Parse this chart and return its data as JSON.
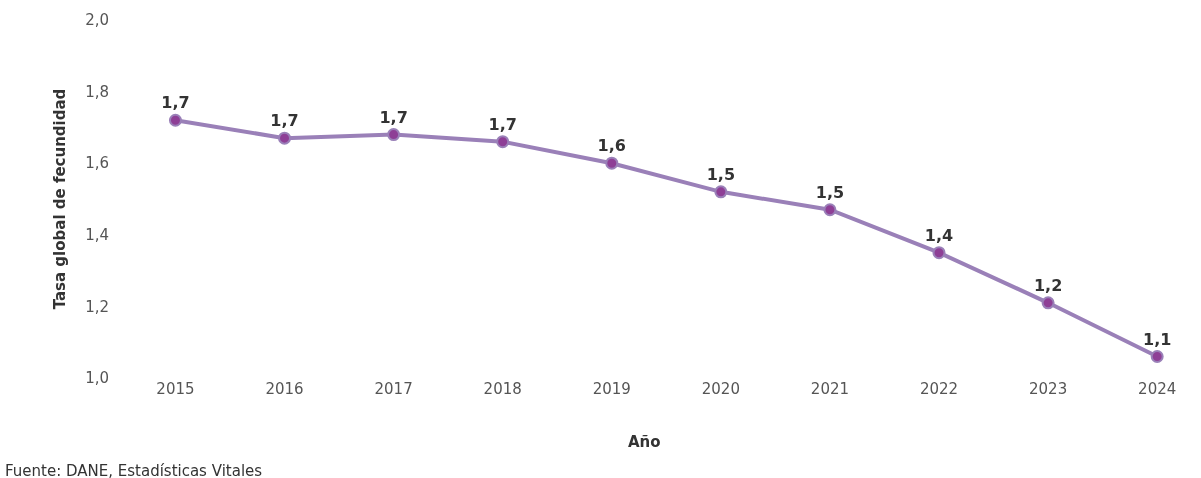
{
  "chart_data": {
    "type": "line",
    "xlabel": "Año",
    "ylabel": "Tasa global de fecundidad",
    "categories": [
      "2015",
      "2016",
      "2017",
      "2018",
      "2019",
      "2020",
      "2021",
      "2022",
      "2023",
      "2024"
    ],
    "series": [
      {
        "color": "#9a80b8",
        "values": [
          1.72,
          1.67,
          1.68,
          1.66,
          1.6,
          1.52,
          1.47,
          1.35,
          1.21,
          1.06
        ],
        "value_labels": [
          "1,7",
          "1,7",
          "1,7",
          "1,7",
          "1,6",
          "1,5",
          "1,5",
          "1,4",
          "1,2",
          "1,1"
        ]
      }
    ],
    "ylim": [
      1.0,
      2.0
    ],
    "yticks": [
      {
        "value": 1.0,
        "label": "1,0"
      },
      {
        "value": 1.2,
        "label": "1,2"
      },
      {
        "value": 1.4,
        "label": "1,4"
      },
      {
        "value": 1.6,
        "label": "1,6"
      },
      {
        "value": 1.8,
        "label": "1,8"
      },
      {
        "value": 2.0,
        "label": "2,0"
      }
    ],
    "marker": "circle",
    "line_style": "solid",
    "annotations": [
      "Fuente: DANE, Estadísticas Vitales"
    ]
  }
}
